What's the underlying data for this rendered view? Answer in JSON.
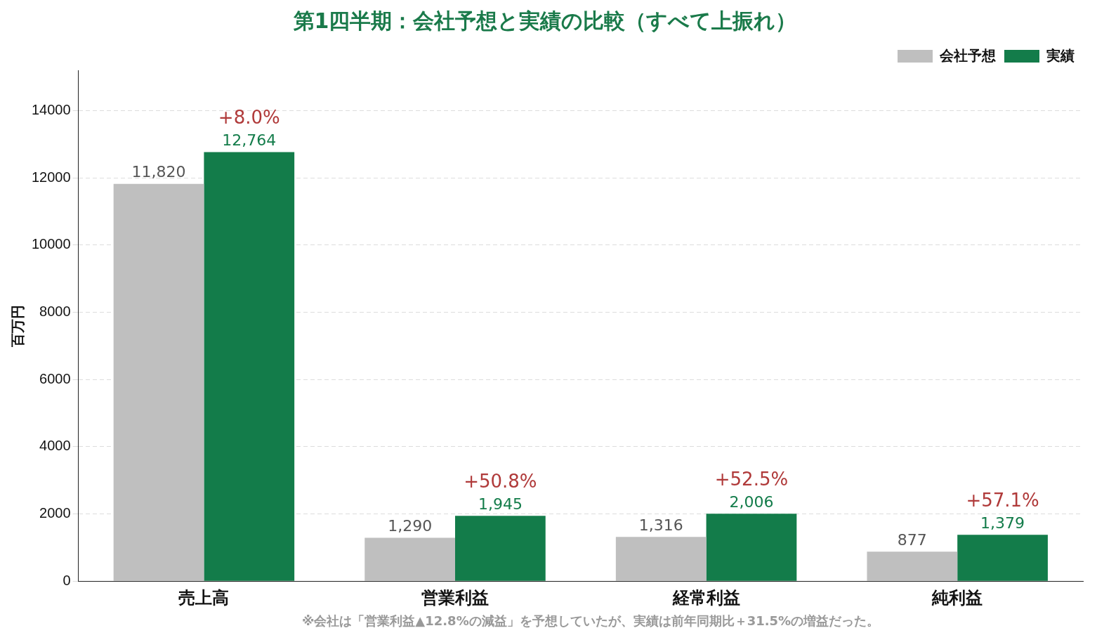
{
  "chart_data": {
    "type": "bar",
    "title": "第1四半期：会社予想と実績の比較（すべて上振れ）",
    "ylabel": "百万円",
    "categories": [
      "売上高",
      "営業利益",
      "経常利益",
      "純利益"
    ],
    "series": [
      {
        "name": "会社予想",
        "color": "#bfbfbf",
        "values": [
          11820,
          1290,
          1316,
          877
        ],
        "value_labels": [
          "11,820",
          "1,290",
          "1,316",
          "877"
        ]
      },
      {
        "name": "実績",
        "color": "#137c4a",
        "values": [
          12764,
          1945,
          2006,
          1379
        ],
        "value_labels": [
          "12,764",
          "1,945",
          "2,006",
          "1,379"
        ]
      }
    ],
    "ylim": [
      0,
      15200
    ],
    "yticks": [
      0,
      2000,
      4000,
      6000,
      8000,
      10000,
      12000,
      14000
    ],
    "grid": "y",
    "legend": "top right",
    "annotations": [
      {
        "text": "+8.0%",
        "x": "売上高",
        "y": 12764
      },
      {
        "text": "+50.8%",
        "x": "営業利益",
        "y": 1945
      },
      {
        "text": "+52.5%",
        "x": "経常利益",
        "y": 2006
      },
      {
        "text": "+57.1%",
        "x": "純利益",
        "y": 1379
      },
      "※会社は「営業利益▲12.8%の減益」を予想していたが、実績は前年同期比＋31.5%の増益だった。"
    ]
  }
}
